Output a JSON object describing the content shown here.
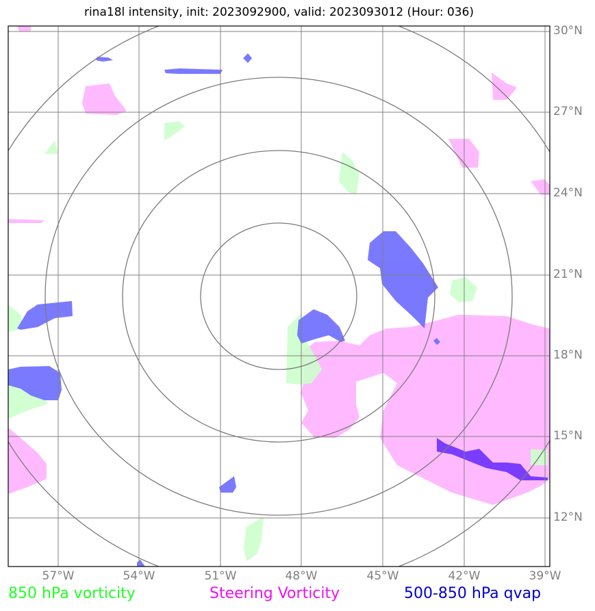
{
  "title": "rina18l intensity, init: 2023092900, valid: 2023093012 (Hour: 036)",
  "lat_labels": [
    "30°N",
    "27°N",
    "24°N",
    "21°N",
    "18°N",
    "15°N",
    "12°N"
  ],
  "lon_labels": [
    "57°W",
    "54°W",
    "51°W",
    "48°W",
    "45°W",
    "42°W",
    "39°W"
  ],
  "legend": {
    "green": "850 hPa vorticity",
    "magenta": "Steering Vorticity",
    "blue": "500-850 hPa qvap"
  },
  "colors": {
    "green_fill": "#ccffcc",
    "magenta_fill": "#ffb3ff",
    "blue_fill": "#6b6bff",
    "purple_fill": "#7a3dff",
    "grid": "#808080"
  }
}
